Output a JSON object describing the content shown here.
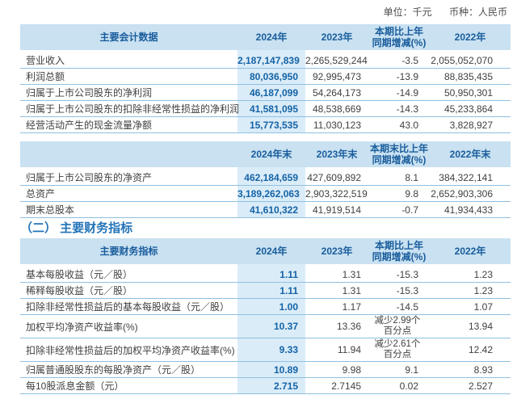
{
  "meta": {
    "unit_label": "单位：千元",
    "currency_label": "币种：人民币"
  },
  "section_title": "（二） 主要财务指标",
  "colors": {
    "header_bg": "#c9e1f1",
    "highlight_band_bg": "#daecf8",
    "header_text": "#1a5d9c",
    "value_2024_text": "#1463a6",
    "row_border": "#8fc0e2",
    "section_title_text": "#2273b8"
  },
  "table1": {
    "headers": [
      "主要会计数据",
      "2024年",
      "2023年",
      "本期比上年\n同期增减(%)",
      "2022年"
    ],
    "rows": [
      [
        "营业收入",
        "2,187,147,839",
        "2,265,529,244",
        "-3.5",
        "2,055,052,070"
      ],
      [
        "利润总额",
        "80,036,950",
        "92,995,473",
        "-13.9",
        "88,835,435"
      ],
      [
        "归属于上市公司股东的净利润",
        "46,187,099",
        "54,264,173",
        "-14.9",
        "50,950,301"
      ],
      [
        "归属于上市公司股东的扣除非经常性损益的净利润",
        "41,581,095",
        "48,538,669",
        "-14.3",
        "45,233,864"
      ],
      [
        "经营活动产生的现金流量净额",
        "15,773,535",
        "11,030,123",
        "43.0",
        "3,828,927"
      ]
    ]
  },
  "table2": {
    "headers": [
      "",
      "2024年末",
      "2023年末",
      "本期末比上年\n同期增减(%)",
      "2022年末"
    ],
    "rows": [
      [
        "归属于上市公司股东的净资产",
        "462,184,659",
        "427,609,892",
        "8.1",
        "384,322,141"
      ],
      [
        "总资产",
        "3,189,262,063",
        "2,903,322,519",
        "9.8",
        "2,652,903,306"
      ],
      [
        "期末总股本",
        "41,610,322",
        "41,919,514",
        "-0.7",
        "41,934,433"
      ]
    ]
  },
  "table3": {
    "headers": [
      "主要财务指标",
      "2024年",
      "2023年",
      "本期比上年\n同期增减(%)",
      "2022年"
    ],
    "rows": [
      [
        "基本每股收益（元／股）",
        "1.11",
        "1.31",
        "-15.3",
        "1.23"
      ],
      [
        "稀释每股收益（元／股）",
        "1.11",
        "1.31",
        "-15.3",
        "1.23"
      ],
      [
        "扣除非经常性损益后的基本每股收益（元／股）",
        "1.00",
        "1.17",
        "-14.5",
        "1.07"
      ],
      [
        "加权平均净资产收益率(%)",
        "10.37",
        "13.36",
        "减少2.99个\n百分点",
        "13.94"
      ],
      [
        "扣除非经常性损益后的加权平均净资产收益率(%)",
        "9.33",
        "11.94",
        "减少2.61个\n百分点",
        "12.42"
      ],
      [
        "归属普通股股东的每股净资产（元／股）",
        "10.89",
        "9.98",
        "9.1",
        "8.93"
      ],
      [
        "每10股派息金额（元）",
        "2.715",
        "2.7145",
        "0.02",
        "2.527"
      ]
    ]
  }
}
